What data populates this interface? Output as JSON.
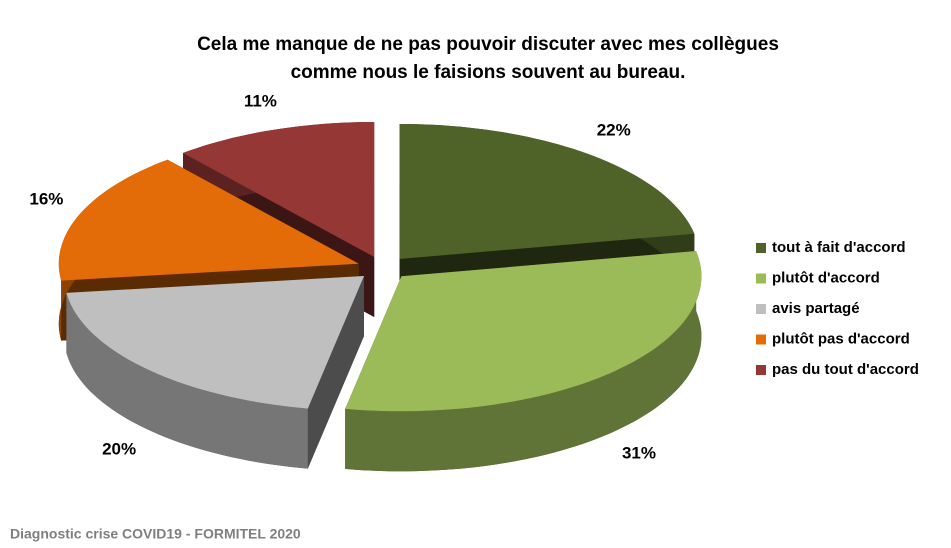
{
  "chart_data": {
    "type": "pie",
    "title": [
      "Cela me manque de ne pas pouvoir discuter avec mes collègues",
      "comme nous le faisions souvent au bureau."
    ],
    "categories": [
      "tout à fait d'accord",
      "plutôt d'accord",
      "avis partagé",
      "plutôt pas d'accord",
      "pas du tout d'accord"
    ],
    "values": [
      22,
      31,
      20,
      16,
      11
    ],
    "value_labels": [
      "22%",
      "31%",
      "20%",
      "16%",
      "11%"
    ],
    "colors": [
      "#4f6228",
      "#9bbb59",
      "#bfbfbf",
      "#e36c09",
      "#953735"
    ],
    "legend": "right"
  },
  "footer": "Diagnostic crise COVID19 - FORMITEL 2020"
}
